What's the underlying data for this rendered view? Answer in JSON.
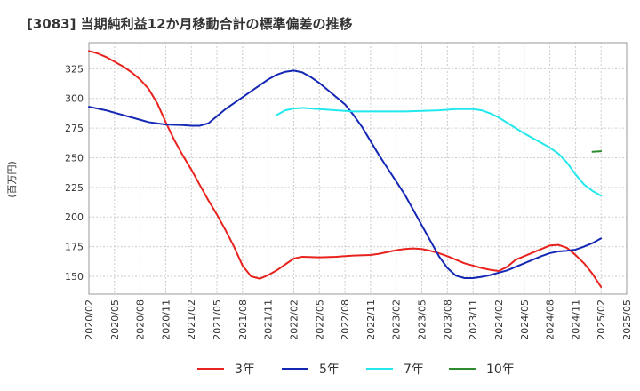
{
  "chart_data": {
    "type": "line",
    "title": "[3083]  当期純利益12か月移動合計の標準偏差の推移",
    "xlabel": "",
    "ylabel": "(百万円)",
    "ylim": [
      135,
      347
    ],
    "yticks": [
      150,
      175,
      200,
      225,
      250,
      275,
      300,
      325
    ],
    "grid": true,
    "legend_position": "bottom",
    "x_ticks": [
      "2020/02",
      "2020/05",
      "2020/08",
      "2020/11",
      "2021/02",
      "2021/05",
      "2021/08",
      "2021/11",
      "2022/02",
      "2022/05",
      "2022/08",
      "2022/11",
      "2023/02",
      "2023/05",
      "2023/08",
      "2023/11",
      "2024/02",
      "2024/05",
      "2024/08",
      "2024/11",
      "2025/02",
      "2025/05"
    ],
    "series": [
      {
        "name": "3年",
        "color": "#e8231e",
        "points": [
          [
            "2020/02",
            340
          ],
          [
            "2020/03",
            338
          ],
          [
            "2020/04",
            335
          ],
          [
            "2020/05",
            331
          ],
          [
            "2020/06",
            327
          ],
          [
            "2020/07",
            322
          ],
          [
            "2020/08",
            316
          ],
          [
            "2020/09",
            308
          ],
          [
            "2020/10",
            296
          ],
          [
            "2020/11",
            280
          ],
          [
            "2020/12",
            265
          ],
          [
            "2021/01",
            252
          ],
          [
            "2021/02",
            240
          ],
          [
            "2021/03",
            227
          ],
          [
            "2021/04",
            214
          ],
          [
            "2021/05",
            202
          ],
          [
            "2021/06",
            189
          ],
          [
            "2021/07",
            175
          ],
          [
            "2021/08",
            159
          ],
          [
            "2021/09",
            150
          ],
          [
            "2021/10",
            148
          ],
          [
            "2021/11",
            151
          ],
          [
            "2021/12",
            155
          ],
          [
            "2022/01",
            160
          ],
          [
            "2022/02",
            165
          ],
          [
            "2022/03",
            166.5
          ],
          [
            "2022/05",
            166
          ],
          [
            "2022/07",
            166.5
          ],
          [
            "2022/09",
            167.5
          ],
          [
            "2022/11",
            168
          ],
          [
            "2022/12",
            169
          ],
          [
            "2023/01",
            170.5
          ],
          [
            "2023/02",
            172
          ],
          [
            "2023/03",
            173
          ],
          [
            "2023/04",
            173.5
          ],
          [
            "2023/05",
            173
          ],
          [
            "2023/06",
            171.5
          ],
          [
            "2023/07",
            169.5
          ],
          [
            "2023/08",
            167
          ],
          [
            "2023/09",
            164
          ],
          [
            "2023/10",
            161
          ],
          [
            "2023/11",
            159
          ],
          [
            "2023/12",
            157
          ],
          [
            "2024/01",
            155.5
          ],
          [
            "2024/02",
            154.5
          ],
          [
            "2024/03",
            158
          ],
          [
            "2024/04",
            164
          ],
          [
            "2024/05",
            167
          ],
          [
            "2024/06",
            170
          ],
          [
            "2024/07",
            173
          ],
          [
            "2024/08",
            176
          ],
          [
            "2024/09",
            176.5
          ],
          [
            "2024/10",
            174
          ],
          [
            "2024/11",
            168
          ],
          [
            "2024/12",
            161
          ],
          [
            "2025/01",
            152
          ],
          [
            "2025/02",
            141
          ]
        ]
      },
      {
        "name": "5年",
        "color": "#1428b4",
        "points": [
          [
            "2020/02",
            293
          ],
          [
            "2020/04",
            290
          ],
          [
            "2020/06",
            286
          ],
          [
            "2020/08",
            282
          ],
          [
            "2020/09",
            280
          ],
          [
            "2020/11",
            278
          ],
          [
            "2021/01",
            277.5
          ],
          [
            "2021/02",
            277
          ],
          [
            "2021/03",
            277
          ],
          [
            "2021/04",
            279
          ],
          [
            "2021/05",
            285
          ],
          [
            "2021/06",
            291
          ],
          [
            "2021/07",
            296
          ],
          [
            "2021/08",
            301
          ],
          [
            "2021/09",
            306
          ],
          [
            "2021/10",
            311
          ],
          [
            "2021/11",
            316
          ],
          [
            "2021/12",
            320
          ],
          [
            "2022/01",
            322.5
          ],
          [
            "2022/02",
            323.5
          ],
          [
            "2022/03",
            322
          ],
          [
            "2022/04",
            318
          ],
          [
            "2022/05",
            313
          ],
          [
            "2022/06",
            307
          ],
          [
            "2022/07",
            301
          ],
          [
            "2022/08",
            295
          ],
          [
            "2022/09",
            286
          ],
          [
            "2022/10",
            276
          ],
          [
            "2022/11",
            264
          ],
          [
            "2022/12",
            252
          ],
          [
            "2023/01",
            241
          ],
          [
            "2023/02",
            230
          ],
          [
            "2023/03",
            219
          ],
          [
            "2023/04",
            206
          ],
          [
            "2023/05",
            193
          ],
          [
            "2023/06",
            180
          ],
          [
            "2023/07",
            167
          ],
          [
            "2023/08",
            157
          ],
          [
            "2023/09",
            150.5
          ],
          [
            "2023/10",
            148.5
          ],
          [
            "2023/11",
            148.5
          ],
          [
            "2023/12",
            149.5
          ],
          [
            "2024/01",
            151
          ],
          [
            "2024/02",
            153
          ],
          [
            "2024/03",
            155
          ],
          [
            "2024/04",
            158
          ],
          [
            "2024/05",
            161
          ],
          [
            "2024/06",
            164
          ],
          [
            "2024/07",
            167
          ],
          [
            "2024/08",
            169.5
          ],
          [
            "2024/09",
            171
          ],
          [
            "2024/10",
            171.5
          ],
          [
            "2024/11",
            172.5
          ],
          [
            "2024/12",
            175
          ],
          [
            "2025/01",
            178
          ],
          [
            "2025/02",
            182
          ]
        ]
      },
      {
        "name": "7年",
        "color": "#22e8ee",
        "points": [
          [
            "2021/12",
            286
          ],
          [
            "2022/01",
            290
          ],
          [
            "2022/02",
            291.5
          ],
          [
            "2022/03",
            292
          ],
          [
            "2022/05",
            291
          ],
          [
            "2022/07",
            290
          ],
          [
            "2022/09",
            289
          ],
          [
            "2022/11",
            289
          ],
          [
            "2023/01",
            289
          ],
          [
            "2023/03",
            289
          ],
          [
            "2023/05",
            289.5
          ],
          [
            "2023/07",
            290
          ],
          [
            "2023/09",
            291
          ],
          [
            "2023/11",
            291
          ],
          [
            "2023/12",
            290
          ],
          [
            "2024/01",
            287.5
          ],
          [
            "2024/02",
            284
          ],
          [
            "2024/03",
            279.5
          ],
          [
            "2024/04",
            275
          ],
          [
            "2024/05",
            270.5
          ],
          [
            "2024/06",
            266.5
          ],
          [
            "2024/07",
            262.5
          ],
          [
            "2024/08",
            258.5
          ],
          [
            "2024/09",
            253.5
          ],
          [
            "2024/10",
            246
          ],
          [
            "2024/11",
            236
          ],
          [
            "2024/12",
            227.5
          ],
          [
            "2025/01",
            222
          ],
          [
            "2025/02",
            218
          ]
        ]
      },
      {
        "name": "10年",
        "color": "#2e8b2e",
        "points": [
          [
            "2025/01",
            255
          ],
          [
            "2025/02",
            255.5
          ]
        ]
      }
    ]
  }
}
